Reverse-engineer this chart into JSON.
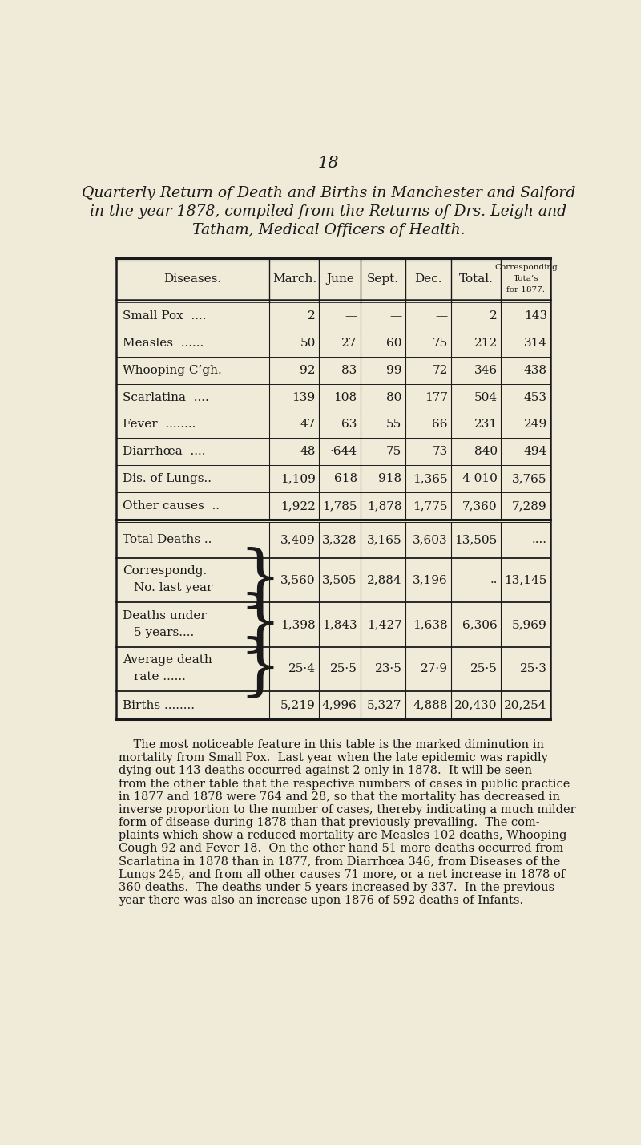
{
  "page_number": "18",
  "title_lines": [
    "Quarterly Return of Death and Births in Manchester and Salford",
    "in the year 1878, compiled from the Returns of Drs. Leigh and",
    "Tatham, Medical Officers of Health."
  ],
  "col_headers": [
    "Diseases.",
    "March.",
    "June",
    "Sept.",
    "Dec.",
    "Total.",
    "Corresponding\nTota’s\nfor 1877."
  ],
  "diseases": [
    "Small Pox  ....",
    "Measles  ......",
    "Whooping C’gh.",
    "Scarlatina  ....",
    "Fever  ........",
    "Diarrhœa  ....",
    "Dis. of Lungs..",
    "Other causes  .."
  ],
  "disease_data": [
    [
      "2",
      "—",
      "—",
      "—",
      "2",
      "143"
    ],
    [
      "50",
      "27",
      "60",
      "75",
      "212",
      "314"
    ],
    [
      "92",
      "83",
      "99",
      "72",
      "346",
      "438"
    ],
    [
      "139",
      "108",
      "80",
      "177",
      "504",
      "453"
    ],
    [
      "47",
      "63",
      "55",
      "66",
      "231",
      "249"
    ],
    [
      "48",
      "·644",
      "75",
      "73",
      "840",
      "494"
    ],
    [
      "1,109",
      "618",
      "918",
      "1,365",
      "4 010",
      "3,765"
    ],
    [
      "1,922",
      "1,785",
      "1,878",
      "1,775",
      "7,360",
      "7,289"
    ]
  ],
  "summary_rows": [
    {
      "type": "single",
      "label": "Total Deaths ..",
      "values": [
        "3,409",
        "3,328",
        "3,165",
        "3,603",
        "13,505",
        "...."
      ]
    },
    {
      "type": "brace",
      "label1": "Correspondg.",
      "label2": "No. last year",
      "values": [
        "3,560",
        "3,505",
        "2,884",
        "3,196",
        "..",
        "13,145"
      ]
    },
    {
      "type": "brace",
      "label1": "Deaths under",
      "label2": "5 years....",
      "values": [
        "1,398",
        "1,843",
        "1,427",
        "1,638",
        "6,306",
        "5,969"
      ]
    },
    {
      "type": "brace",
      "label1": "Average death",
      "label2": "rate ......",
      "values": [
        "25·4",
        "25·5",
        "23·5",
        "27·9",
        "25·5",
        "25·3"
      ]
    },
    {
      "type": "single",
      "label": "Births ........",
      "values": [
        "5,219",
        "4,996",
        "5,327",
        "4,888",
        "20,430",
        "20,254"
      ]
    }
  ],
  "para_lines": [
    "    The most noticeable feature in this table is the marked diminution in",
    "mortality from Small Pox.  Last year when the late epidemic was rapidly",
    "dying out 143 deaths occurred against 2 only in 1878.  It will be seen",
    "from the other table that the respective numbers of cases in public practice",
    "in 1877 and 1878 were 764 and 28, so that the mortality has decreased in",
    "inverse proportion to the number of cases, thereby indicating a much milder",
    "form of disease during 1878 than that previously prevailing.  The com-",
    "plaints which show a reduced mortality are Measles 102 deaths, Whooping",
    "Cough 92 and Fever 18.  On the other hand 51 more deaths occurred from",
    "Scarlatina in 1878 than in 1877, from Diarrhœa 346, from Diseases of the",
    "Lungs 245, and from all other causes 71 more, or a net increase in 1878 of",
    "360 deaths.  The deaths under 5 years increased by 337.  In the previous",
    "year there was also an increase upon 1876 of 592 deaths of Infants."
  ],
  "bg_color": "#f0ead8",
  "line_color": "#1a1a1a",
  "text_color": "#1a1a1a"
}
